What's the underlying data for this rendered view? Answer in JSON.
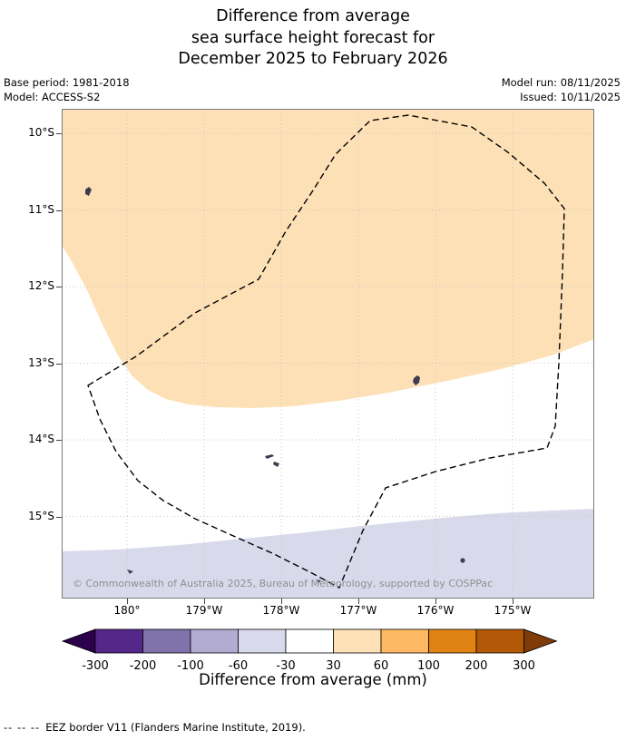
{
  "figure": {
    "title_lines": [
      "Difference from average",
      "sea surface height forecast for",
      "December 2025 to February 2026"
    ]
  },
  "meta": {
    "base_period": "Base period: 1981-2018",
    "model": "Model: ACCESS-S2",
    "model_run": "Model run: 08/11/2025",
    "issued": "Issued: 10/11/2025"
  },
  "map": {
    "copyright": "© Commonwealth of Australia 2025, Bureau of Meteorology, supported by COSPPac",
    "y_tick_labels": [
      "10°S",
      "11°S",
      "12°S",
      "13°S",
      "14°S",
      "15°S"
    ],
    "x_tick_labels": [
      "180°",
      "179°W",
      "178°W",
      "177°W",
      "176°W",
      "175°W"
    ]
  },
  "chart_data": {
    "type": "heatmap",
    "title": "Difference from average sea surface height forecast for December 2025 to February 2026",
    "x_tick_labels": [
      "180°",
      "179°W",
      "178°W",
      "177°W",
      "176°W",
      "175°W"
    ],
    "y_tick_labels": [
      "10°S",
      "11°S",
      "12°S",
      "13°S",
      "14°S",
      "15°S"
    ],
    "colorbar": {
      "label": "Difference from average (mm)",
      "tick_labels": [
        "-300",
        "-200",
        "-100",
        "-60",
        "-30",
        "30",
        "60",
        "100",
        "200",
        "300"
      ],
      "segment_colors": [
        "#2d004b",
        "#542788",
        "#8073ac",
        "#b2abd2",
        "#d8daeb",
        "#ffffff",
        "#fee0b6",
        "#fdb863",
        "#e08214",
        "#b35806",
        "#7f3b08"
      ]
    },
    "regions": [
      {
        "name": "positive anomaly band covering north of map",
        "value_range_mm": "30 to 60",
        "color": "#fee0b6"
      },
      {
        "name": "near-average band across centre of map",
        "value_range_mm": "-30 to 30",
        "color": "#ffffff"
      },
      {
        "name": "negative anomaly band along south of map",
        "value_range_mm": "-60 to -30",
        "color": "#d8daeb"
      }
    ],
    "islands_color": "#3f3c52",
    "eez_border": {
      "style": "dashed",
      "color": "#000000",
      "label": "EEZ border V11"
    }
  },
  "footer": {
    "dash_sample": "-- -- --",
    "note": "EEZ border V11 (Flanders Marine Institute, 2019)."
  }
}
